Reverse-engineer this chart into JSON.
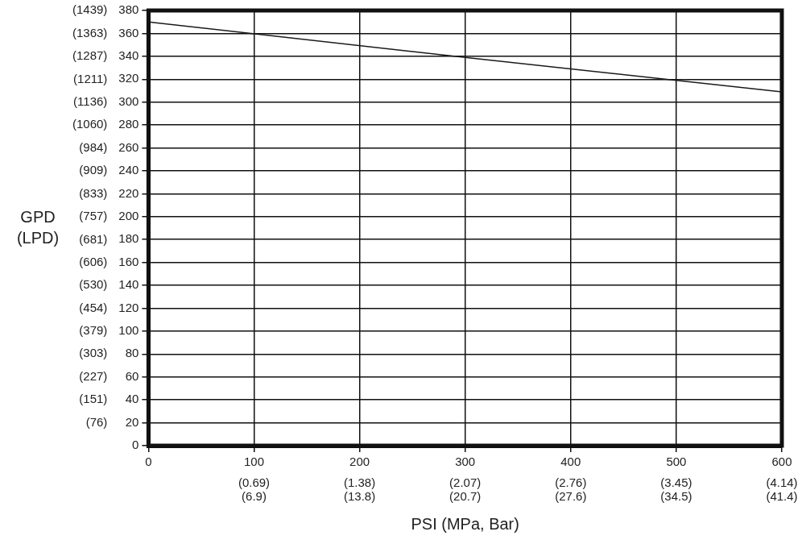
{
  "chart_data": {
    "type": "line",
    "xlabel": "PSI (MPa, Bar)",
    "y2label": "GPD\n(LPD)",
    "x": [
      0,
      300,
      600
    ],
    "series": [
      {
        "color": "#1a1a1a",
        "values": [
          370,
          339,
          309
        ]
      }
    ],
    "xlim": [
      0,
      600
    ],
    "xticks": [
      0,
      100,
      200,
      300,
      400,
      500,
      600
    ],
    "x2lim": [
      0,
      4.14
    ],
    "x2ticks": [
      {
        "value": 0.69,
        "label": "(0.69)"
      },
      {
        "value": 1.38,
        "label": "(1.38)"
      },
      {
        "value": 2.07,
        "label": "(2.07)"
      },
      {
        "value": 2.76,
        "label": "(2.76)"
      },
      {
        "value": 3.45,
        "label": "(3.45)"
      },
      {
        "value": 4.14,
        "label": "(4.14)"
      }
    ],
    "annotations": [
      "(6.9)",
      "(13.8)",
      "(20.7)",
      "(27.6)",
      "(34.5)",
      "(41.4)"
    ],
    "ylim": [
      0,
      380
    ],
    "yticks": [
      0,
      20,
      40,
      60,
      80,
      100,
      120,
      140,
      160,
      180,
      200,
      220,
      240,
      260,
      280,
      300,
      320,
      340,
      360,
      380
    ],
    "y2lim": [
      0,
      1439
    ],
    "y2ticks": [
      {
        "value": 76,
        "label": "(76)"
      },
      {
        "value": 151,
        "label": "(151)"
      },
      {
        "value": 227,
        "label": "(227)"
      },
      {
        "value": 303,
        "label": "(303)"
      },
      {
        "value": 379,
        "label": "(379)"
      },
      {
        "value": 454,
        "label": "(454)"
      },
      {
        "value": 530,
        "label": "(530)"
      },
      {
        "value": 606,
        "label": "(606)"
      },
      {
        "value": 681,
        "label": "(681)"
      },
      {
        "value": 757,
        "label": "(757)"
      },
      {
        "value": 833,
        "label": "(833)"
      },
      {
        "value": 909,
        "label": "(909)"
      },
      {
        "value": 984,
        "label": "(984)"
      },
      {
        "value": 1060,
        "label": "(1060)"
      },
      {
        "value": 1136,
        "label": "(1136)"
      },
      {
        "value": 1211,
        "label": "(1211)"
      },
      {
        "value": 1287,
        "label": "(1287)"
      },
      {
        "value": 1363,
        "label": "(1363)"
      },
      {
        "value": 1439,
        "label": "(1439)"
      }
    ],
    "grid": true,
    "legend": false,
    "marker": "none",
    "line_style": "solid"
  }
}
